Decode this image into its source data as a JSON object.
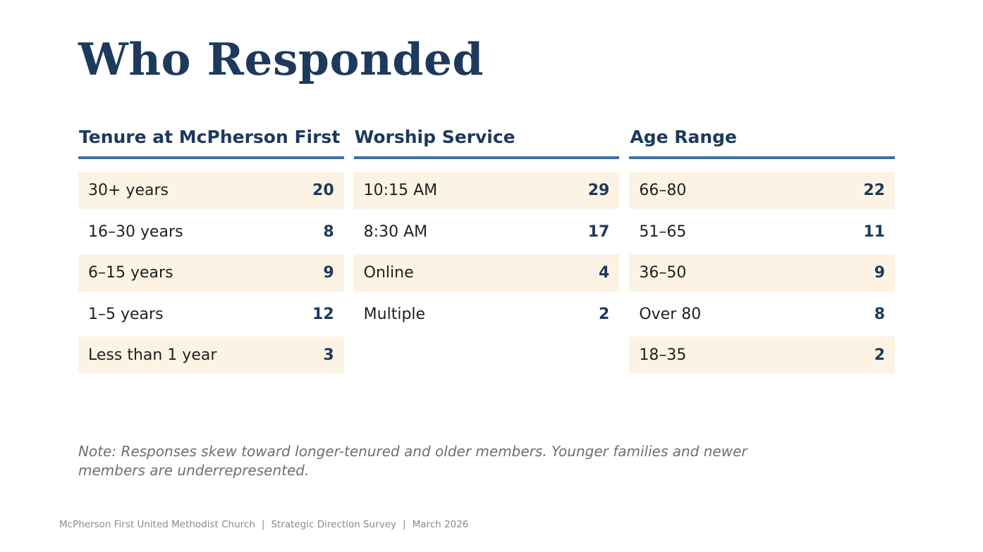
{
  "title": "Who Responded",
  "columns": [
    {
      "header": "Tenure at McPherson First",
      "rows": [
        {
          "label": "30+ years",
          "value": "20"
        },
        {
          "label": "16–30 years",
          "value": "8"
        },
        {
          "label": "6–15 years",
          "value": "9"
        },
        {
          "label": "1–5 years",
          "value": "12"
        },
        {
          "label": "Less than 1 year",
          "value": "3"
        }
      ]
    },
    {
      "header": "Worship Service",
      "rows": [
        {
          "label": "10:15 AM",
          "value": "29"
        },
        {
          "label": "8:30 AM",
          "value": "17"
        },
        {
          "label": "Online",
          "value": "4"
        },
        {
          "label": "Multiple",
          "value": "2"
        }
      ]
    },
    {
      "header": "Age Range",
      "rows": [
        {
          "label": "66–80",
          "value": "22"
        },
        {
          "label": "51–65",
          "value": "11"
        },
        {
          "label": "36–50",
          "value": "9"
        },
        {
          "label": "Over 80",
          "value": "8"
        },
        {
          "label": "18–35",
          "value": "2"
        }
      ]
    }
  ],
  "note": "Note: Responses skew toward longer-tenured and older members. Younger families and newer members are underrepresented.",
  "footer": {
    "organization": "McPherson First United Methodist Church",
    "separator": "|",
    "survey": "Strategic Direction Survey",
    "date": "March 2026"
  },
  "colors": {
    "title": "#1d3a5c",
    "header_rule": "#3b6ea8",
    "row_shade": "#fdf3e4",
    "value": "#1d3a5c",
    "note": "#6f6f6f",
    "footer": "#8a8a8a"
  }
}
